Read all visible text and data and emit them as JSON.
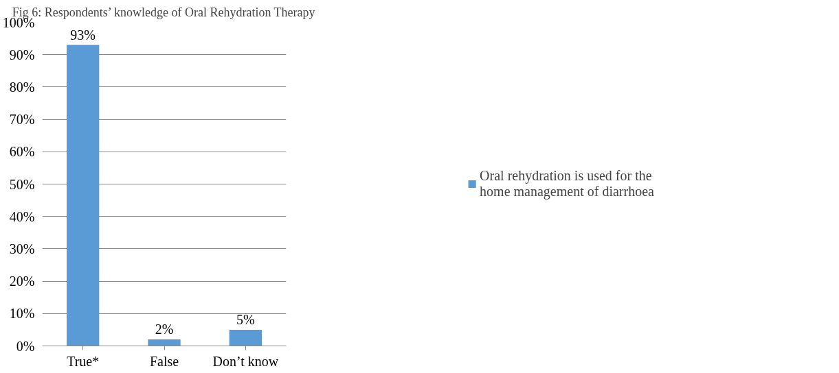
{
  "chart_data": {
    "type": "bar",
    "title": "Fig 6: Respondents’ knowledge of Oral Rehydration Therapy",
    "categories": [
      "True*",
      "False",
      "Don’t know"
    ],
    "series": [
      {
        "name": "Oral rehydration is used for the home management of diarrhoea",
        "color": "#5b9bd5",
        "values": [
          93,
          2,
          5
        ]
      }
    ],
    "value_labels": [
      "93%",
      "2%",
      "5%"
    ],
    "ylim": [
      0,
      100
    ],
    "yticks": [
      {
        "value": 0,
        "label": "0%"
      },
      {
        "value": 10,
        "label": "10%"
      },
      {
        "value": 20,
        "label": "20%"
      },
      {
        "value": 30,
        "label": "30%"
      },
      {
        "value": 40,
        "label": "40%"
      },
      {
        "value": 50,
        "label": "50%"
      },
      {
        "value": 60,
        "label": "60%"
      },
      {
        "value": 70,
        "label": "70%"
      },
      {
        "value": 80,
        "label": "80%"
      },
      {
        "value": 90,
        "label": "90%"
      },
      {
        "value": 100,
        "label": "100%"
      }
    ],
    "grid": "y",
    "legend": "right"
  }
}
